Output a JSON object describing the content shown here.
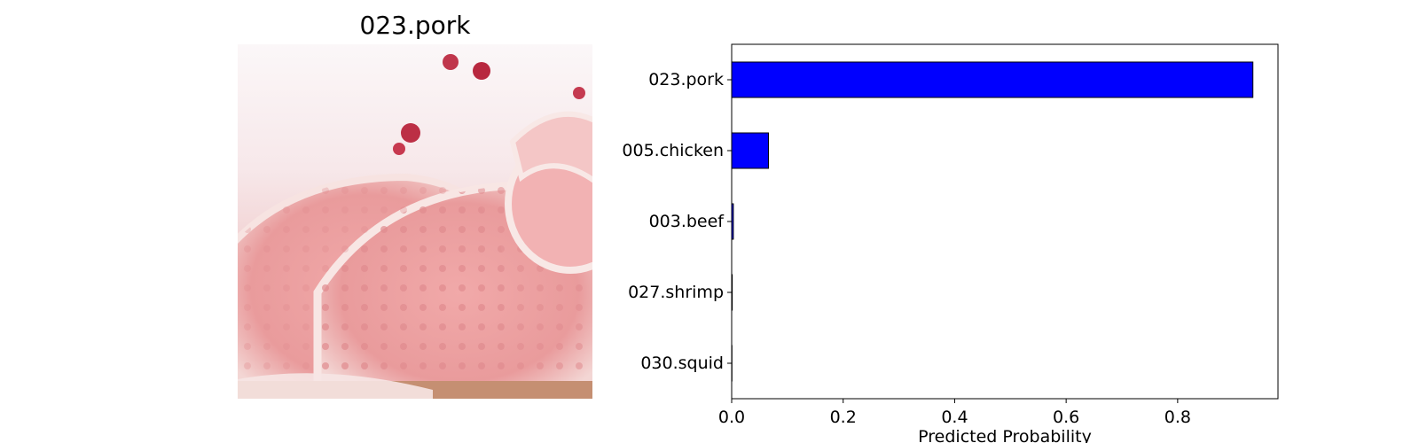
{
  "image_panel": {
    "title": "023.pork"
  },
  "chart_data": {
    "type": "bar",
    "orientation": "horizontal",
    "categories": [
      "023.pork",
      "005.chicken",
      "003.beef",
      "027.shrimp",
      "030.squid"
    ],
    "values": [
      0.935,
      0.066,
      0.003,
      0.001,
      0.0005
    ],
    "xlabel": "Predicted Probability",
    "ylabel": "",
    "xlim": [
      0,
      0.98
    ],
    "xticks": [
      0.0,
      0.2,
      0.4,
      0.6,
      0.8
    ],
    "xtick_labels": [
      "0.0",
      "0.2",
      "0.4",
      "0.6",
      "0.8"
    ],
    "bar_color": "#0000ff",
    "edge_color": "#000000",
    "grid": false,
    "legend": "none"
  }
}
